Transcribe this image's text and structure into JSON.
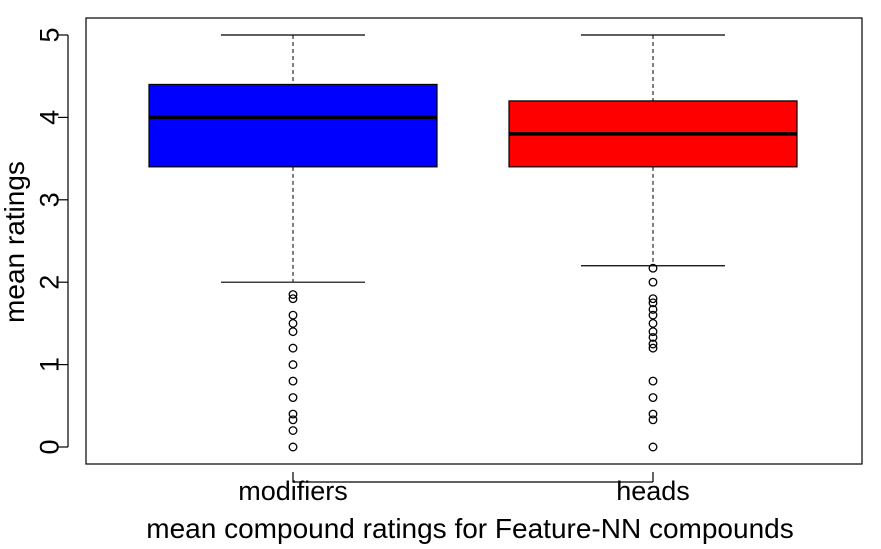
{
  "chart_data": {
    "type": "boxplot",
    "title": "",
    "xlabel": "mean compound ratings for Feature-NN compounds",
    "ylabel": "mean ratings",
    "ylim": [
      -0.2,
      5.2
    ],
    "yticks": [
      0,
      1,
      2,
      3,
      4,
      5
    ],
    "y_tick_labels": [
      "0",
      "1",
      "2",
      "3",
      "4",
      "5"
    ],
    "grid": false,
    "legend": "none",
    "categories": [
      "modifiers",
      "heads"
    ],
    "series": [
      {
        "category": "modifiers",
        "color": "#0000ff",
        "whisker_low": 2.0,
        "q1": 3.4,
        "median": 4.0,
        "q3": 4.4,
        "whisker_high": 5.0,
        "outliers": [
          1.85,
          1.8,
          1.6,
          1.5,
          1.4,
          1.2,
          1.0,
          0.8,
          0.6,
          0.4,
          0.33,
          0.2,
          0.0
        ]
      },
      {
        "category": "heads",
        "color": "#ff0000",
        "whisker_low": 2.2,
        "q1": 3.4,
        "median": 3.8,
        "q3": 4.2,
        "whisker_high": 5.0,
        "outliers": [
          2.17,
          2.0,
          1.8,
          1.75,
          1.67,
          1.6,
          1.5,
          1.4,
          1.33,
          1.25,
          1.2,
          0.8,
          0.6,
          0.4,
          0.33,
          0.0
        ]
      }
    ]
  }
}
